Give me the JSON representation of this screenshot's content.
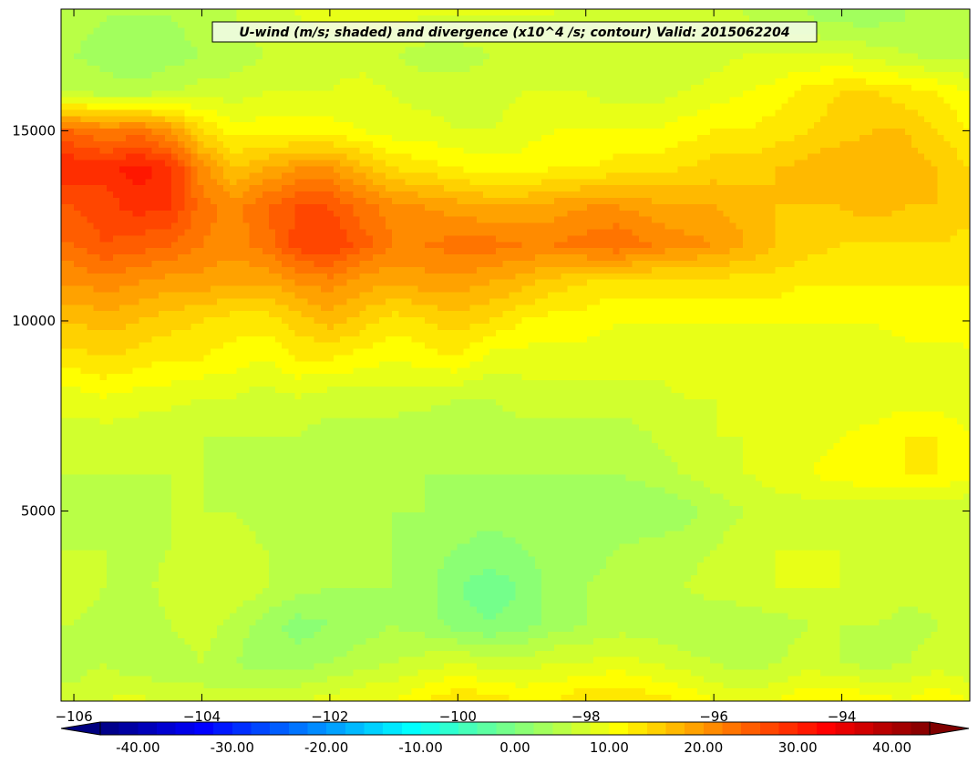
{
  "chart_data": {
    "type": "heatmap",
    "title": "U-wind (m/s; shaded) and divergence (x10^4 /s; contour) Valid: 2015062204",
    "xlabel": "",
    "ylabel": "",
    "xlim": [
      -106.2,
      -92.0
    ],
    "ylim": [
      0,
      18200
    ],
    "x_ticks": [
      -106,
      -104,
      -102,
      -100,
      -98,
      -96,
      -94
    ],
    "x_tick_labels": [
      "−106",
      "−104",
      "−102",
      "−100",
      "−98",
      "−96",
      "−94"
    ],
    "y_ticks": [
      5000,
      10000,
      15000
    ],
    "y_tick_labels": [
      "5000",
      "10000",
      "15000"
    ],
    "colorbar": {
      "min": -44,
      "max": 44,
      "step": 2,
      "tick_values": [
        -40,
        -30,
        -20,
        -10,
        0,
        10,
        20,
        30,
        40
      ],
      "tick_labels": [
        "-40.00",
        "-30.00",
        "-20.00",
        "-10.00",
        "0.00",
        "10.00",
        "20.00",
        "30.00",
        "40.00"
      ],
      "extend": "both",
      "colormap": "jet"
    },
    "field": {
      "x": [
        -106,
        -105.5,
        -105,
        -104.5,
        -104,
        -103.5,
        -103,
        -102.5,
        -102,
        -101.5,
        -101,
        -100.5,
        -100,
        -99.5,
        -99,
        -98.5,
        -98,
        -97.5,
        -97,
        -96.5,
        -96,
        -95.5,
        -95,
        -94.5,
        -94,
        -93.5,
        -93,
        -92.5,
        -92
      ],
      "y": [
        0,
        1000,
        2000,
        3000,
        4000,
        5000,
        6000,
        7000,
        8000,
        9000,
        10000,
        11000,
        12000,
        13000,
        14000,
        15000,
        16000,
        17000,
        18000
      ],
      "u_wind_ms": [
        [
          7,
          8,
          9,
          7,
          6,
          7,
          8,
          8,
          9,
          10,
          10,
          12,
          14,
          13,
          12,
          12,
          14,
          14,
          13,
          12,
          10,
          9,
          10,
          12,
          12,
          11,
          10,
          12,
          10
        ],
        [
          5,
          6,
          4,
          5,
          6,
          4,
          3,
          3,
          4,
          5,
          6,
          7,
          8,
          7,
          7,
          8,
          8,
          9,
          8,
          7,
          6,
          5,
          6,
          7,
          6,
          5,
          6,
          7,
          6
        ],
        [
          6,
          5,
          4,
          6,
          7,
          5,
          3,
          1,
          2,
          3,
          4,
          3,
          1,
          0,
          1,
          3,
          4,
          5,
          5,
          4,
          4,
          5,
          5,
          6,
          6,
          6,
          5,
          6,
          6
        ],
        [
          7,
          6,
          5,
          7,
          8,
          8,
          6,
          5,
          4,
          4,
          4,
          3,
          0,
          -1,
          0,
          3,
          4,
          5,
          5,
          6,
          7,
          7,
          8,
          8,
          8,
          8,
          7,
          7,
          7
        ],
        [
          6,
          6,
          5,
          6,
          7,
          7,
          6,
          5,
          4,
          4,
          4,
          3,
          2,
          1,
          2,
          3,
          3,
          4,
          5,
          5,
          6,
          7,
          8,
          8,
          8,
          7,
          7,
          7,
          6
        ],
        [
          5,
          5,
          5,
          6,
          6,
          6,
          5,
          5,
          4,
          4,
          4,
          4,
          3,
          3,
          3,
          3,
          3,
          2,
          2,
          3,
          5,
          6,
          7,
          7,
          7,
          6,
          6,
          6,
          6
        ],
        [
          6,
          6,
          6,
          6,
          6,
          5,
          5,
          5,
          5,
          4,
          4,
          4,
          4,
          4,
          4,
          4,
          4,
          4,
          5,
          6,
          7,
          8,
          9,
          10,
          11,
          12,
          12,
          12,
          11
        ],
        [
          7,
          7,
          7,
          6,
          6,
          6,
          6,
          6,
          5,
          5,
          5,
          4,
          4,
          5,
          5,
          5,
          5,
          5,
          6,
          7,
          8,
          8,
          9,
          9,
          10,
          11,
          12,
          12,
          10
        ],
        [
          9,
          10,
          9,
          9,
          8,
          8,
          7,
          8,
          7,
          7,
          7,
          7,
          6,
          6,
          7,
          7,
          7,
          7,
          7,
          8,
          8,
          8,
          9,
          9,
          8,
          8,
          9,
          9,
          8
        ],
        [
          13,
          14,
          13,
          12,
          12,
          11,
          10,
          12,
          12,
          11,
          10,
          11,
          12,
          9,
          9,
          9,
          9,
          9,
          9,
          9,
          9,
          9,
          9,
          9,
          9,
          9,
          9,
          9,
          9
        ],
        [
          16,
          17,
          16,
          15,
          14,
          13,
          13,
          15,
          17,
          15,
          13,
          14,
          15,
          14,
          12,
          11,
          11,
          10,
          10,
          10,
          10,
          10,
          10,
          10,
          10,
          10,
          11,
          11,
          12
        ],
        [
          20,
          21,
          20,
          19,
          19,
          18,
          18,
          20,
          21,
          19,
          18,
          19,
          19,
          18,
          17,
          15,
          14,
          13,
          13,
          13,
          13,
          13,
          13,
          12,
          12,
          12,
          12,
          12,
          12
        ],
        [
          24,
          26,
          25,
          24,
          22,
          21,
          23,
          27,
          28,
          25,
          22,
          22,
          23,
          23,
          22,
          22,
          23,
          24,
          22,
          21,
          20,
          18,
          16,
          15,
          14,
          14,
          14,
          14,
          13
        ],
        [
          26,
          27,
          29,
          28,
          23,
          21,
          24,
          26,
          26,
          23,
          21,
          20,
          19,
          18,
          18,
          19,
          20,
          20,
          19,
          18,
          18,
          17,
          16,
          16,
          16,
          17,
          16,
          16,
          15
        ],
        [
          30,
          29,
          31,
          29,
          21,
          16,
          18,
          20,
          20,
          17,
          14,
          13,
          12,
          11,
          11,
          12,
          12,
          13,
          13,
          14,
          15,
          15,
          16,
          17,
          18,
          18,
          17,
          16,
          14
        ],
        [
          24,
          22,
          23,
          20,
          14,
          11,
          11,
          11,
          11,
          10,
          9,
          9,
          8,
          8,
          9,
          10,
          10,
          10,
          10,
          11,
          12,
          12,
          13,
          14,
          15,
          16,
          16,
          14,
          12
        ],
        [
          6,
          5,
          5,
          6,
          7,
          7,
          8,
          8,
          8,
          9,
          8,
          7,
          7,
          7,
          8,
          8,
          8,
          7,
          7,
          8,
          9,
          10,
          11,
          13,
          14,
          14,
          13,
          12,
          10
        ],
        [
          4,
          3,
          2,
          3,
          4,
          5,
          6,
          6,
          7,
          7,
          6,
          5,
          5,
          6,
          7,
          8,
          7,
          6,
          6,
          6,
          7,
          8,
          8,
          8,
          8,
          7,
          6,
          5,
          5
        ],
        [
          5,
          4,
          4,
          4,
          5,
          6,
          7,
          8,
          9,
          9,
          9,
          8,
          8,
          8,
          8,
          8,
          7,
          7,
          6,
          6,
          7,
          6,
          5,
          4,
          3,
          3,
          4,
          5,
          5
        ]
      ]
    }
  }
}
